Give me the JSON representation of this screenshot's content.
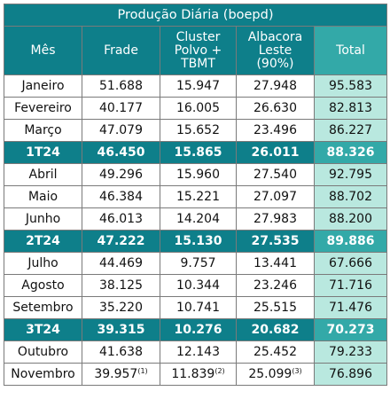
{
  "title": "Produção Diária (boepd)",
  "headers": {
    "mes": "Mês",
    "frade": "Frade",
    "cluster": [
      "Cluster",
      "Polvo +",
      "TBMT"
    ],
    "albacora": [
      "Albacora",
      "Leste",
      "(90%)"
    ],
    "total": "Total"
  },
  "rows": [
    {
      "type": "month",
      "mes": "Janeiro",
      "frade": "51.688",
      "cluster": "15.947",
      "albacora": "27.948",
      "total": "95.583"
    },
    {
      "type": "month",
      "mes": "Fevereiro",
      "frade": "40.177",
      "cluster": "16.005",
      "albacora": "26.630",
      "total": "82.813"
    },
    {
      "type": "month",
      "mes": "Março",
      "frade": "47.079",
      "cluster": "15.652",
      "albacora": "23.496",
      "total": "86.227"
    },
    {
      "type": "quarter",
      "mes": "1T24",
      "frade": "46.450",
      "cluster": "15.865",
      "albacora": "26.011",
      "total": "88.326"
    },
    {
      "type": "month",
      "mes": "Abril",
      "frade": "49.296",
      "cluster": "15.960",
      "albacora": "27.540",
      "total": "92.795"
    },
    {
      "type": "month",
      "mes": "Maio",
      "frade": "46.384",
      "cluster": "15.221",
      "albacora": "27.097",
      "total": "88.702"
    },
    {
      "type": "month",
      "mes": "Junho",
      "frade": "46.013",
      "cluster": "14.204",
      "albacora": "27.983",
      "total": "88.200"
    },
    {
      "type": "quarter",
      "mes": "2T24",
      "frade": "47.222",
      "cluster": "15.130",
      "albacora": "27.535",
      "total": "89.886"
    },
    {
      "type": "month",
      "mes": "Julho",
      "frade": "44.469",
      "cluster": "9.757",
      "albacora": "13.441",
      "total": "67.666"
    },
    {
      "type": "month",
      "mes": "Agosto",
      "frade": "38.125",
      "cluster": "10.344",
      "albacora": "23.246",
      "total": "71.716"
    },
    {
      "type": "month",
      "mes": "Setembro",
      "frade": "35.220",
      "cluster": "10.741",
      "albacora": "25.515",
      "total": "71.476"
    },
    {
      "type": "quarter",
      "mes": "3T24",
      "frade": "39.315",
      "cluster": "10.276",
      "albacora": "20.682",
      "total": "70.273"
    },
    {
      "type": "month",
      "mes": "Outubro",
      "frade": "41.638",
      "cluster": "12.143",
      "albacora": "25.452",
      "total": "79.233"
    },
    {
      "type": "month",
      "mes": "Novembro",
      "frade": "39.957",
      "frade_note": "(1)",
      "cluster": "11.839",
      "cluster_note": "(2)",
      "albacora": "25.099",
      "albacora_note": "(3)",
      "total": "76.896"
    }
  ]
}
